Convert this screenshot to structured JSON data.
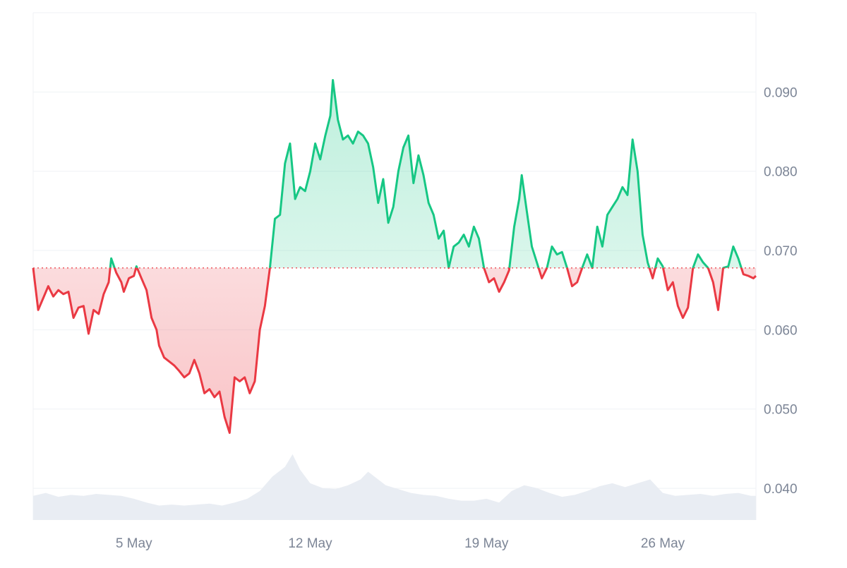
{
  "chart_data": {
    "type": "line",
    "title": "",
    "xlabel": "",
    "ylabel": "",
    "baseline": 0.0678,
    "ylim": [
      0.036,
      0.1
    ],
    "y_ticks": [
      {
        "value": 0.04,
        "label": "0.040"
      },
      {
        "value": 0.05,
        "label": "0.050"
      },
      {
        "value": 0.06,
        "label": "0.060"
      },
      {
        "value": 0.07,
        "label": "0.070"
      },
      {
        "value": 0.08,
        "label": "0.080"
      },
      {
        "value": 0.09,
        "label": "0.090"
      }
    ],
    "x_range_days": [
      1,
      30
    ],
    "x_ticks": [
      {
        "day": 5,
        "label": "5 May"
      },
      {
        "day": 12,
        "label": "12 May"
      },
      {
        "day": 19,
        "label": "19 May"
      },
      {
        "day": 26,
        "label": "26 May"
      }
    ],
    "grid": true,
    "colors": {
      "up": "#16c784",
      "down": "#ea3943",
      "up_fill": "#16c784",
      "down_fill": "#ea3943",
      "volume": "#e9edf3",
      "grid": "#eff2f5",
      "tick_text": "#7c8596",
      "baseline": "#ea3943"
    },
    "series": [
      {
        "points": [
          [
            1.0,
            0.0678
          ],
          [
            1.2,
            0.0625
          ],
          [
            1.4,
            0.064
          ],
          [
            1.6,
            0.0655
          ],
          [
            1.8,
            0.0642
          ],
          [
            2.0,
            0.065
          ],
          [
            2.2,
            0.0645
          ],
          [
            2.4,
            0.0648
          ],
          [
            2.6,
            0.0615
          ],
          [
            2.8,
            0.0628
          ],
          [
            3.0,
            0.063
          ],
          [
            3.2,
            0.0595
          ],
          [
            3.4,
            0.0625
          ],
          [
            3.6,
            0.062
          ],
          [
            3.8,
            0.0645
          ],
          [
            4.0,
            0.066
          ],
          [
            4.1,
            0.069
          ],
          [
            4.3,
            0.0672
          ],
          [
            4.5,
            0.066
          ],
          [
            4.6,
            0.0648
          ],
          [
            4.8,
            0.0665
          ],
          [
            5.0,
            0.0668
          ],
          [
            5.1,
            0.068
          ],
          [
            5.3,
            0.0665
          ],
          [
            5.5,
            0.065
          ],
          [
            5.7,
            0.0615
          ],
          [
            5.9,
            0.06
          ],
          [
            6.0,
            0.058
          ],
          [
            6.2,
            0.0565
          ],
          [
            6.4,
            0.056
          ],
          [
            6.6,
            0.0555
          ],
          [
            6.8,
            0.0548
          ],
          [
            7.0,
            0.054
          ],
          [
            7.2,
            0.0545
          ],
          [
            7.4,
            0.0562
          ],
          [
            7.6,
            0.0545
          ],
          [
            7.8,
            0.052
          ],
          [
            8.0,
            0.0525
          ],
          [
            8.2,
            0.0515
          ],
          [
            8.4,
            0.0522
          ],
          [
            8.6,
            0.049
          ],
          [
            8.8,
            0.047
          ],
          [
            9.0,
            0.054
          ],
          [
            9.2,
            0.0535
          ],
          [
            9.4,
            0.054
          ],
          [
            9.6,
            0.052
          ],
          [
            9.8,
            0.0535
          ],
          [
            10.0,
            0.06
          ],
          [
            10.2,
            0.063
          ],
          [
            10.4,
            0.0678
          ],
          [
            10.6,
            0.074
          ],
          [
            10.8,
            0.0745
          ],
          [
            11.0,
            0.081
          ],
          [
            11.2,
            0.0835
          ],
          [
            11.4,
            0.0765
          ],
          [
            11.6,
            0.078
          ],
          [
            11.8,
            0.0775
          ],
          [
            12.0,
            0.08
          ],
          [
            12.2,
            0.0835
          ],
          [
            12.4,
            0.0815
          ],
          [
            12.6,
            0.0845
          ],
          [
            12.8,
            0.087
          ],
          [
            12.9,
            0.0915
          ],
          [
            13.1,
            0.0865
          ],
          [
            13.3,
            0.084
          ],
          [
            13.5,
            0.0845
          ],
          [
            13.7,
            0.0835
          ],
          [
            13.9,
            0.085
          ],
          [
            14.1,
            0.0845
          ],
          [
            14.3,
            0.0835
          ],
          [
            14.5,
            0.0805
          ],
          [
            14.7,
            0.076
          ],
          [
            14.9,
            0.079
          ],
          [
            15.1,
            0.0735
          ],
          [
            15.3,
            0.0755
          ],
          [
            15.5,
            0.08
          ],
          [
            15.7,
            0.083
          ],
          [
            15.9,
            0.0845
          ],
          [
            16.1,
            0.0785
          ],
          [
            16.3,
            0.082
          ],
          [
            16.5,
            0.0795
          ],
          [
            16.7,
            0.076
          ],
          [
            16.9,
            0.0745
          ],
          [
            17.1,
            0.0715
          ],
          [
            17.3,
            0.0725
          ],
          [
            17.5,
            0.0678
          ],
          [
            17.7,
            0.0705
          ],
          [
            17.9,
            0.071
          ],
          [
            18.1,
            0.072
          ],
          [
            18.3,
            0.0705
          ],
          [
            18.5,
            0.073
          ],
          [
            18.7,
            0.0715
          ],
          [
            18.9,
            0.0678
          ],
          [
            19.1,
            0.066
          ],
          [
            19.3,
            0.0665
          ],
          [
            19.5,
            0.0648
          ],
          [
            19.7,
            0.066
          ],
          [
            19.9,
            0.0675
          ],
          [
            20.1,
            0.073
          ],
          [
            20.3,
            0.0765
          ],
          [
            20.4,
            0.0795
          ],
          [
            20.6,
            0.075
          ],
          [
            20.8,
            0.0705
          ],
          [
            21.0,
            0.0685
          ],
          [
            21.2,
            0.0665
          ],
          [
            21.4,
            0.0678
          ],
          [
            21.6,
            0.0705
          ],
          [
            21.8,
            0.0695
          ],
          [
            22.0,
            0.0698
          ],
          [
            22.2,
            0.0678
          ],
          [
            22.4,
            0.0655
          ],
          [
            22.6,
            0.066
          ],
          [
            22.8,
            0.0678
          ],
          [
            23.0,
            0.0695
          ],
          [
            23.2,
            0.0678
          ],
          [
            23.4,
            0.073
          ],
          [
            23.6,
            0.0705
          ],
          [
            23.8,
            0.0745
          ],
          [
            24.0,
            0.0755
          ],
          [
            24.2,
            0.0765
          ],
          [
            24.4,
            0.078
          ],
          [
            24.6,
            0.077
          ],
          [
            24.8,
            0.084
          ],
          [
            25.0,
            0.08
          ],
          [
            25.2,
            0.072
          ],
          [
            25.4,
            0.0685
          ],
          [
            25.6,
            0.0665
          ],
          [
            25.8,
            0.069
          ],
          [
            26.0,
            0.068
          ],
          [
            26.2,
            0.065
          ],
          [
            26.4,
            0.066
          ],
          [
            26.6,
            0.063
          ],
          [
            26.8,
            0.0615
          ],
          [
            27.0,
            0.0628
          ],
          [
            27.2,
            0.0678
          ],
          [
            27.4,
            0.0695
          ],
          [
            27.6,
            0.0685
          ],
          [
            27.8,
            0.0678
          ],
          [
            28.0,
            0.066
          ],
          [
            28.2,
            0.0625
          ],
          [
            28.4,
            0.0678
          ],
          [
            28.6,
            0.068
          ],
          [
            28.8,
            0.0705
          ],
          [
            29.0,
            0.069
          ],
          [
            29.2,
            0.067
          ],
          [
            29.4,
            0.0668
          ],
          [
            29.6,
            0.0665
          ],
          [
            29.7,
            0.0668
          ]
        ]
      }
    ],
    "volume": {
      "values": [
        [
          1.0,
          0.25
        ],
        [
          1.5,
          0.28
        ],
        [
          2.0,
          0.24
        ],
        [
          2.5,
          0.26
        ],
        [
          3.0,
          0.25
        ],
        [
          3.5,
          0.27
        ],
        [
          4.0,
          0.26
        ],
        [
          4.5,
          0.25
        ],
        [
          5.0,
          0.22
        ],
        [
          5.5,
          0.18
        ],
        [
          6.0,
          0.15
        ],
        [
          6.5,
          0.16
        ],
        [
          7.0,
          0.15
        ],
        [
          7.5,
          0.16
        ],
        [
          8.0,
          0.17
        ],
        [
          8.5,
          0.15
        ],
        [
          9.0,
          0.18
        ],
        [
          9.5,
          0.22
        ],
        [
          10.0,
          0.3
        ],
        [
          10.5,
          0.45
        ],
        [
          11.0,
          0.55
        ],
        [
          11.3,
          0.68
        ],
        [
          11.6,
          0.52
        ],
        [
          12.0,
          0.38
        ],
        [
          12.5,
          0.33
        ],
        [
          13.0,
          0.32
        ],
        [
          13.5,
          0.36
        ],
        [
          14.0,
          0.42
        ],
        [
          14.3,
          0.5
        ],
        [
          14.7,
          0.42
        ],
        [
          15.0,
          0.36
        ],
        [
          15.5,
          0.32
        ],
        [
          16.0,
          0.28
        ],
        [
          16.5,
          0.26
        ],
        [
          17.0,
          0.25
        ],
        [
          17.5,
          0.22
        ],
        [
          18.0,
          0.2
        ],
        [
          18.5,
          0.2
        ],
        [
          19.0,
          0.22
        ],
        [
          19.5,
          0.18
        ],
        [
          20.0,
          0.3
        ],
        [
          20.5,
          0.36
        ],
        [
          21.0,
          0.33
        ],
        [
          21.5,
          0.28
        ],
        [
          22.0,
          0.24
        ],
        [
          22.5,
          0.26
        ],
        [
          23.0,
          0.3
        ],
        [
          23.5,
          0.35
        ],
        [
          24.0,
          0.38
        ],
        [
          24.5,
          0.34
        ],
        [
          25.0,
          0.38
        ],
        [
          25.5,
          0.42
        ],
        [
          26.0,
          0.28
        ],
        [
          26.5,
          0.25
        ],
        [
          27.0,
          0.26
        ],
        [
          27.5,
          0.27
        ],
        [
          28.0,
          0.25
        ],
        [
          28.5,
          0.27
        ],
        [
          29.0,
          0.28
        ],
        [
          29.5,
          0.25
        ],
        [
          29.7,
          0.25
        ]
      ]
    }
  }
}
